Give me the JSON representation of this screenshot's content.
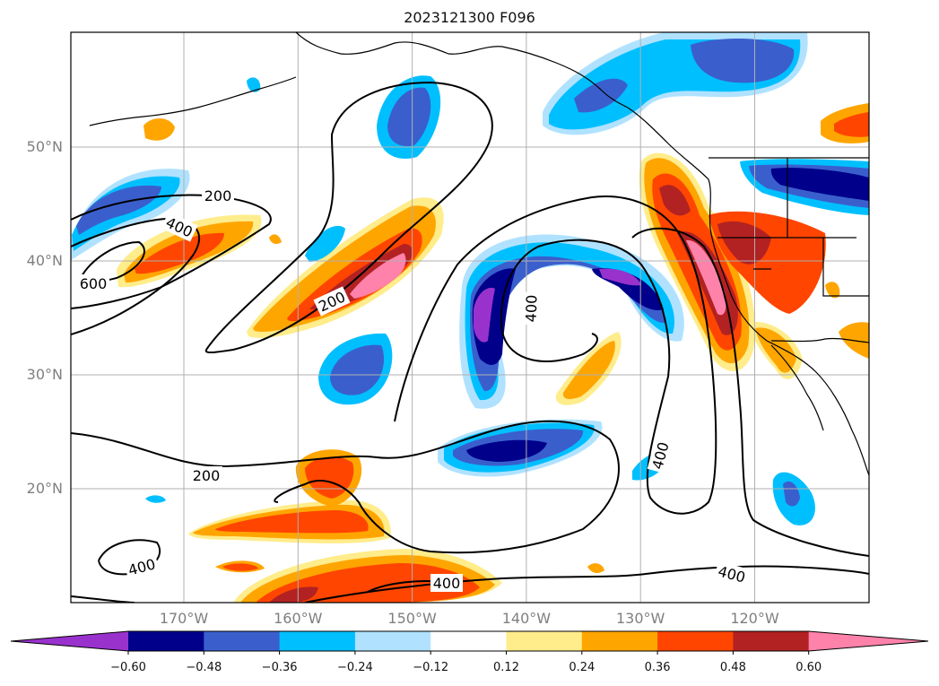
{
  "title": "2023121300 F096",
  "map": {
    "lat_ticks": [
      {
        "label": "50°N",
        "value": 50
      },
      {
        "label": "40°N",
        "value": 40
      },
      {
        "label": "30°N",
        "value": 30
      },
      {
        "label": "20°N",
        "value": 20
      }
    ],
    "lon_ticks": [
      {
        "label": "170°W",
        "value": -170
      },
      {
        "label": "160°W",
        "value": -160
      },
      {
        "label": "150°W",
        "value": -150
      },
      {
        "label": "140°W",
        "value": -140
      },
      {
        "label": "130°W",
        "value": -130
      },
      {
        "label": "120°W",
        "value": -120
      }
    ],
    "contour_labels": [
      "200",
      "400",
      "600",
      "200",
      "400",
      "200",
      "400",
      "400",
      "400",
      "400"
    ],
    "colors": {
      "neg_lt_060": "#9932cc",
      "neg_060_048": "#00008b",
      "neg_048_036": "#3a5fcd",
      "neg_036_024": "#00bfff",
      "neg_024_012": "#b0e2ff",
      "pos_012_024": "#ffec8b",
      "pos_024_036": "#ffa500",
      "pos_036_048": "#ff4500",
      "pos_048_060": "#b22222",
      "pos_gt_060": "#ff82ab"
    }
  },
  "colorbar": {
    "tick_labels": [
      "−0.60",
      "−0.48",
      "−0.36",
      "−0.24",
      "−0.12",
      "0.12",
      "0.24",
      "0.36",
      "0.48",
      "0.60"
    ],
    "colors": [
      "#9932cc",
      "#00008b",
      "#3a5fcd",
      "#00bfff",
      "#b0e2ff",
      "#ffffff",
      "#ffec8b",
      "#ffa500",
      "#ff4500",
      "#b22222",
      "#ff82ab"
    ]
  }
}
